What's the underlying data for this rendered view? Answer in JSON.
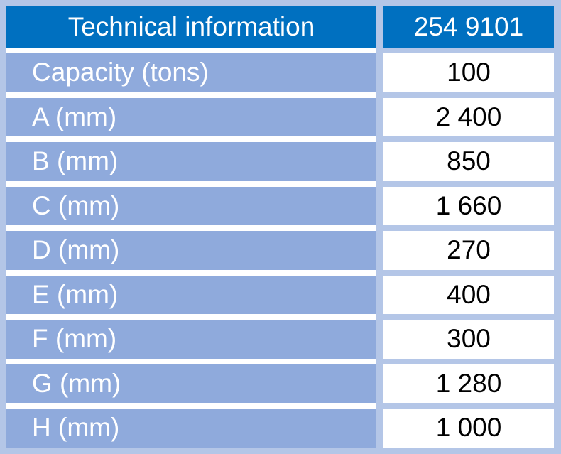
{
  "header": {
    "label": "Technical information",
    "model": "254 9101"
  },
  "rows": [
    {
      "label": "Capacity (tons)",
      "value": "100"
    },
    {
      "label": "A (mm)",
      "value": "2 400"
    },
    {
      "label": "B (mm)",
      "value": "850"
    },
    {
      "label": "C (mm)",
      "value": "1 660"
    },
    {
      "label": "D (mm)",
      "value": "270"
    },
    {
      "label": "E (mm)",
      "value": "400"
    },
    {
      "label": "F (mm)",
      "value": "300"
    },
    {
      "label": "G (mm)",
      "value": "1 280"
    },
    {
      "label": "H (mm)",
      "value": "1 000"
    }
  ],
  "colors": {
    "header": "#0070c0",
    "label_cell": "#8faadc",
    "background": "#b4c6e7"
  }
}
